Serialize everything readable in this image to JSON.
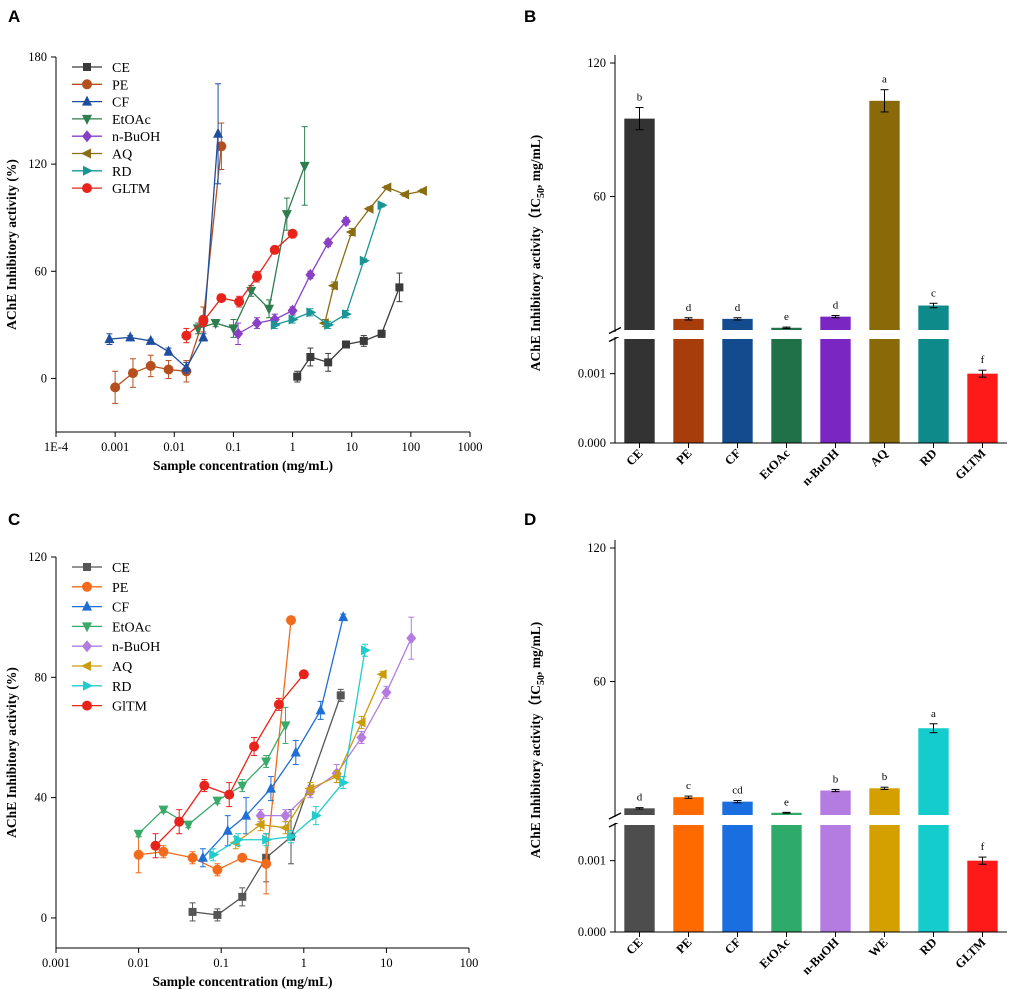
{
  "panels": {
    "a": "A",
    "b": "B",
    "c": "C",
    "d": "D"
  },
  "chart_data": [
    {
      "type": "line",
      "panel": "A",
      "xlabel": "Sample concentration (mg/mL)",
      "ylabel": "AChE Inhibitory  activity (%)",
      "xscale": "log",
      "xlim": [
        0.0001,
        1000
      ],
      "ylim": [
        -30,
        180
      ],
      "xticks": [
        0.0001,
        0.001,
        0.01,
        0.1,
        1,
        10,
        100,
        1000
      ],
      "xtick_labels": [
        "1E-4",
        "0.001",
        "0.01",
        "0.1",
        "1",
        "10",
        "100",
        "1000"
      ],
      "yticks": [
        0,
        60,
        120,
        180
      ],
      "ytick_labels": [
        "0",
        "60",
        "120",
        "180"
      ],
      "legend_position": "top-left",
      "series": [
        {
          "name": "CE",
          "color": "#3a3a3a",
          "marker": "square",
          "x": [
            1.2,
            2.0,
            4.0,
            8.0,
            16,
            32,
            64
          ],
          "y": [
            1,
            12,
            9,
            19,
            21,
            25,
            51
          ],
          "err": [
            3,
            5,
            5,
            1,
            3,
            2,
            8
          ]
        },
        {
          "name": "PE",
          "color": "#b5501e",
          "marker": "circle",
          "x": [
            0.001,
            0.002,
            0.004,
            0.008,
            0.016,
            0.031,
            0.0625
          ],
          "y": [
            -5,
            3,
            7,
            5,
            4,
            33,
            130
          ],
          "err": [
            9,
            8,
            6,
            5,
            6,
            7,
            13
          ]
        },
        {
          "name": "CF",
          "color": "#1f4e9e",
          "marker": "triangle-up",
          "x": [
            0.0008,
            0.0018,
            0.004,
            0.008,
            0.016,
            0.031,
            0.055
          ],
          "y": [
            22,
            23,
            21,
            15,
            6,
            23,
            137
          ],
          "err": [
            3,
            1,
            1,
            2,
            3,
            2,
            28
          ]
        },
        {
          "name": "EtOAc",
          "color": "#2e7d4f",
          "marker": "triangle-down",
          "x": [
            0.025,
            0.05,
            0.1,
            0.2,
            0.4,
            0.8,
            1.6
          ],
          "y": [
            28,
            31,
            28,
            49,
            39,
            92,
            119
          ],
          "err": [
            3,
            2,
            5,
            3,
            5,
            9,
            22
          ]
        },
        {
          "name": "n-BuOH",
          "color": "#8a3fc8",
          "marker": "diamond",
          "x": [
            0.12,
            0.25,
            0.5,
            1.0,
            2.0,
            4.0,
            8.0
          ],
          "y": [
            25,
            31,
            33,
            38,
            58,
            76,
            88
          ],
          "err": [
            6,
            3,
            3,
            2,
            2,
            2,
            2
          ]
        },
        {
          "name": "AQ",
          "color": "#8a6d12",
          "marker": "triangle-left",
          "x": [
            3.5,
            5,
            10,
            20,
            40,
            80,
            160
          ],
          "y": [
            31,
            52,
            82,
            95,
            107,
            103,
            105
          ],
          "err": [
            2,
            2,
            2,
            1,
            1,
            1,
            1
          ]
        },
        {
          "name": "RD",
          "color": "#1a9494",
          "marker": "triangle-right",
          "x": [
            0.5,
            1.0,
            2.0,
            4.0,
            8.0,
            16,
            32
          ],
          "y": [
            30,
            33,
            37,
            30,
            36,
            66,
            97
          ],
          "err": [
            2,
            2,
            2,
            2,
            2,
            1,
            1
          ]
        },
        {
          "name": "GLTM",
          "color": "#e8231b",
          "marker": "circle",
          "x": [
            0.016,
            0.031,
            0.0625,
            0.125,
            0.25,
            0.5,
            1.0
          ],
          "y": [
            24,
            32,
            45,
            43,
            57,
            72,
            81
          ],
          "err": [
            4,
            3,
            2,
            3,
            3,
            2,
            1
          ]
        }
      ]
    },
    {
      "type": "bar",
      "panel": "B",
      "ylabel": "AChE Inhibitory  activity（IC",
      "ylabel_sub": "50",
      "ylabel_tail": ", mg/mL)",
      "broken_axis": true,
      "upper_range": [
        0,
        120
      ],
      "lower_range": [
        0,
        0.0015
      ],
      "upper_ticks": [
        "60",
        "120"
      ],
      "lower_ticks": [
        "0.000",
        "0.001"
      ],
      "categories": [
        "CE",
        "PE",
        "CF",
        "EtOAc",
        "n-BuOH",
        "AQ",
        "RD",
        "GLTM"
      ],
      "values": [
        95,
        5,
        5,
        1,
        6,
        103,
        11,
        0.001
      ],
      "errors": [
        5,
        0.5,
        0.5,
        0.3,
        0.5,
        5,
        1,
        5e-05
      ],
      "significance": [
        "b",
        "d",
        "d",
        "e",
        "d",
        "a",
        "c",
        "f"
      ],
      "colors": [
        "#333333",
        "#a63d0a",
        "#144b8e",
        "#207048",
        "#7a26c2",
        "#8a6a08",
        "#0e8a8a",
        "#ff1a1a"
      ]
    },
    {
      "type": "line",
      "panel": "C",
      "xlabel": "Sample concentration (mg/mL)",
      "ylabel": "AChE Inhibitory  activity (%)",
      "xscale": "log",
      "xlim": [
        0.001,
        100
      ],
      "ylim": [
        -10,
        120
      ],
      "xticks": [
        0.001,
        0.01,
        0.1,
        1,
        10,
        100
      ],
      "xtick_labels": [
        "0.001",
        "0.01",
        "0.1",
        "1",
        "10",
        "100"
      ],
      "yticks": [
        0,
        40,
        80,
        120
      ],
      "ytick_labels": [
        "0",
        "40",
        "80",
        "120"
      ],
      "legend_position": "top-left",
      "series": [
        {
          "name": "CE",
          "color": "#555555",
          "marker": "square",
          "x": [
            0.045,
            0.09,
            0.18,
            0.35,
            0.7,
            2.8
          ],
          "y": [
            2,
            1,
            7,
            20,
            27,
            74
          ],
          "err": [
            3,
            2,
            3,
            8,
            9,
            2
          ]
        },
        {
          "name": "PE",
          "color": "#f26a1b",
          "marker": "circle",
          "x": [
            0.01,
            0.02,
            0.045,
            0.09,
            0.18,
            0.35,
            0.7
          ],
          "y": [
            21,
            22,
            20,
            16,
            20,
            18,
            99
          ],
          "err": [
            6,
            2,
            2,
            2,
            1,
            10,
            1
          ]
        },
        {
          "name": "CF",
          "color": "#1f6fd6",
          "marker": "triangle-up",
          "x": [
            0.06,
            0.12,
            0.2,
            0.4,
            0.8,
            1.6,
            3.0
          ],
          "y": [
            20,
            29,
            34,
            43,
            55,
            69,
            100
          ],
          "err": [
            3,
            5,
            6,
            4,
            4,
            3,
            1
          ]
        },
        {
          "name": "EtOAc",
          "color": "#3aaa6a",
          "marker": "triangle-down",
          "x": [
            0.01,
            0.02,
            0.04,
            0.09,
            0.18,
            0.35,
            0.6
          ],
          "y": [
            28,
            36,
            31,
            39,
            44,
            52,
            64
          ],
          "err": [
            1,
            1,
            1,
            1,
            2,
            2,
            6
          ]
        },
        {
          "name": "n-BuOH",
          "color": "#b47be0",
          "marker": "diamond",
          "x": [
            0.3,
            0.6,
            1.2,
            2.5,
            5.0,
            10,
            20
          ],
          "y": [
            34,
            34,
            42,
            48,
            60,
            75,
            93
          ],
          "err": [
            2,
            2,
            2,
            3,
            2,
            2,
            7
          ]
        },
        {
          "name": "AQ",
          "color": "#cc9c10",
          "marker": "triangle-left",
          "x": [
            0.15,
            0.3,
            0.6,
            1.2,
            2.5,
            5.0,
            9.0
          ],
          "y": [
            25,
            31,
            30,
            43,
            47,
            65,
            81
          ],
          "err": [
            2,
            2,
            2,
            2,
            2,
            2,
            1
          ]
        },
        {
          "name": "RD",
          "color": "#22cccc",
          "marker": "triangle-right",
          "x": [
            0.08,
            0.16,
            0.35,
            0.7,
            1.4,
            3.0,
            5.5
          ],
          "y": [
            21,
            26,
            26,
            27,
            34,
            45,
            89
          ],
          "err": [
            2,
            2,
            2,
            2,
            3,
            2,
            2
          ]
        },
        {
          "name": "GlTM",
          "color": "#e8231b",
          "marker": "circle",
          "x": [
            0.016,
            0.031,
            0.0625,
            0.125,
            0.25,
            0.5,
            1.0
          ],
          "y": [
            24,
            32,
            44,
            41,
            57,
            71,
            81
          ],
          "err": [
            4,
            4,
            2,
            4,
            3,
            2,
            1
          ]
        }
      ]
    },
    {
      "type": "bar",
      "panel": "D",
      "ylabel": "AChE Inhibitory  activity（IC",
      "ylabel_sub": "50",
      "ylabel_tail": ", mg/mL)",
      "broken_axis": true,
      "upper_range": [
        0,
        120
      ],
      "lower_range": [
        0,
        0.0015
      ],
      "upper_ticks": [
        "60",
        "120"
      ],
      "lower_ticks": [
        "0.000",
        "0.001"
      ],
      "categories": [
        "CE",
        "PE",
        "CF",
        "EtOAc",
        "n-BuOH",
        "WE",
        "RD",
        "GLTM"
      ],
      "values": [
        3,
        8,
        6,
        1,
        11,
        12,
        39,
        0.001
      ],
      "errors": [
        0.3,
        0.5,
        0.5,
        0.2,
        0.5,
        0.5,
        2,
        5e-05
      ],
      "significance": [
        "d",
        "c",
        "cd",
        "e",
        "b",
        "b",
        "a",
        "f"
      ],
      "colors": [
        "#4d4d4d",
        "#ff6a00",
        "#1a6ee0",
        "#2eaa6a",
        "#b47be0",
        "#d4a000",
        "#14cccc",
        "#ff1a1a"
      ]
    }
  ]
}
